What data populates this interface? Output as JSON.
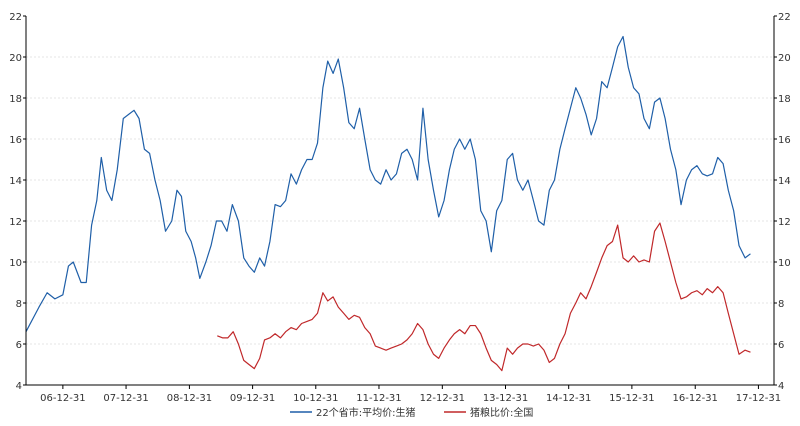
{
  "chart_data": {
    "type": "line",
    "title": "",
    "xlabel": "",
    "ylabel": "",
    "ylim": [
      4,
      22
    ],
    "yticks": [
      4,
      6,
      8,
      10,
      12,
      14,
      16,
      18,
      20,
      22
    ],
    "y2lim": [
      4,
      22
    ],
    "y2ticks": [
      4,
      6,
      8,
      10,
      12,
      14,
      16,
      18,
      20,
      22
    ],
    "xlim": [
      "2006-06-01",
      "2018-03-31"
    ],
    "xticks": [
      "06-12-31",
      "07-12-31",
      "08-12-31",
      "09-12-31",
      "10-12-31",
      "11-12-31",
      "12-12-31",
      "13-12-31",
      "14-12-31",
      "15-12-31",
      "16-12-31",
      "17-12-31"
    ],
    "grid": true,
    "legend_position": "bottom",
    "series": [
      {
        "name": "22个省市:平均价:生猪",
        "color": "#1f5fa8",
        "axis": "left",
        "points": [
          [
            "2006-06-01",
            6.6
          ],
          [
            "2006-08-15",
            7.8
          ],
          [
            "2006-10-01",
            8.5
          ],
          [
            "2006-11-15",
            8.2
          ],
          [
            "2006-12-31",
            8.4
          ],
          [
            "2007-02-01",
            9.8
          ],
          [
            "2007-03-01",
            10.0
          ],
          [
            "2007-04-15",
            9.0
          ],
          [
            "2007-05-15",
            9.0
          ],
          [
            "2007-06-15",
            11.8
          ],
          [
            "2007-07-15",
            13.0
          ],
          [
            "2007-08-10",
            15.1
          ],
          [
            "2007-09-10",
            13.5
          ],
          [
            "2007-10-10",
            13.0
          ],
          [
            "2007-11-10",
            14.5
          ],
          [
            "2007-12-15",
            17.0
          ],
          [
            "2008-01-15",
            17.2
          ],
          [
            "2008-02-15",
            17.4
          ],
          [
            "2008-03-15",
            17.0
          ],
          [
            "2008-04-15",
            15.5
          ],
          [
            "2008-05-15",
            15.3
          ],
          [
            "2008-06-15",
            14.0
          ],
          [
            "2008-07-15",
            13.0
          ],
          [
            "2008-08-15",
            11.5
          ],
          [
            "2008-09-20",
            12.0
          ],
          [
            "2008-10-20",
            13.5
          ],
          [
            "2008-11-15",
            13.2
          ],
          [
            "2008-12-10",
            11.5
          ],
          [
            "2009-01-10",
            11.0
          ],
          [
            "2009-02-05",
            10.2
          ],
          [
            "2009-03-01",
            9.2
          ],
          [
            "2009-04-05",
            10.0
          ],
          [
            "2009-05-05",
            10.8
          ],
          [
            "2009-06-05",
            12.0
          ],
          [
            "2009-07-05",
            12.0
          ],
          [
            "2009-08-05",
            11.5
          ],
          [
            "2009-09-05",
            12.8
          ],
          [
            "2009-10-10",
            12.0
          ],
          [
            "2009-11-10",
            10.2
          ],
          [
            "2009-12-10",
            9.8
          ],
          [
            "2010-01-10",
            9.5
          ],
          [
            "2010-02-10",
            10.2
          ],
          [
            "2010-03-10",
            9.8
          ],
          [
            "2010-04-10",
            11.0
          ],
          [
            "2010-05-10",
            12.8
          ],
          [
            "2010-06-10",
            12.7
          ],
          [
            "2010-07-10",
            13.0
          ],
          [
            "2010-08-10",
            14.3
          ],
          [
            "2010-09-10",
            13.8
          ],
          [
            "2010-10-10",
            14.5
          ],
          [
            "2010-11-10",
            15.0
          ],
          [
            "2010-12-10",
            15.0
          ],
          [
            "2011-01-10",
            15.8
          ],
          [
            "2011-02-10",
            18.5
          ],
          [
            "2011-03-10",
            19.8
          ],
          [
            "2011-04-10",
            19.2
          ],
          [
            "2011-05-10",
            19.9
          ],
          [
            "2011-06-10",
            18.5
          ],
          [
            "2011-07-10",
            16.8
          ],
          [
            "2011-08-10",
            16.5
          ],
          [
            "2011-09-10",
            17.5
          ],
          [
            "2011-10-10",
            16.0
          ],
          [
            "2011-11-10",
            14.5
          ],
          [
            "2011-12-10",
            14.0
          ],
          [
            "2012-01-10",
            13.8
          ],
          [
            "2012-02-10",
            14.5
          ],
          [
            "2012-03-10",
            14.0
          ],
          [
            "2012-04-10",
            14.3
          ],
          [
            "2012-05-10",
            15.3
          ],
          [
            "2012-06-10",
            15.5
          ],
          [
            "2012-07-10",
            15.0
          ],
          [
            "2012-08-10",
            14.0
          ],
          [
            "2012-09-10",
            17.5
          ],
          [
            "2012-10-10",
            15.0
          ],
          [
            "2012-11-10",
            13.5
          ],
          [
            "2012-12-10",
            12.2
          ],
          [
            "2013-01-10",
            13.0
          ],
          [
            "2013-02-10",
            14.5
          ],
          [
            "2013-03-10",
            15.5
          ],
          [
            "2013-04-10",
            16.0
          ],
          [
            "2013-05-10",
            15.5
          ],
          [
            "2013-06-10",
            16.0
          ],
          [
            "2013-07-10",
            15.0
          ],
          [
            "2013-08-10",
            12.5
          ],
          [
            "2013-09-10",
            12.0
          ],
          [
            "2013-10-10",
            10.5
          ],
          [
            "2013-11-10",
            12.5
          ],
          [
            "2013-12-10",
            13.0
          ],
          [
            "2014-01-10",
            15.0
          ],
          [
            "2014-02-10",
            15.3
          ],
          [
            "2014-03-10",
            14.0
          ],
          [
            "2014-04-10",
            13.5
          ],
          [
            "2014-05-10",
            14.0
          ],
          [
            "2014-06-10",
            13.0
          ],
          [
            "2014-07-10",
            12.0
          ],
          [
            "2014-08-10",
            11.8
          ],
          [
            "2014-09-10",
            13.5
          ],
          [
            "2014-10-10",
            14.0
          ],
          [
            "2014-11-10",
            15.5
          ],
          [
            "2014-12-10",
            16.5
          ],
          [
            "2015-01-10",
            17.5
          ],
          [
            "2015-02-10",
            18.5
          ],
          [
            "2015-03-10",
            18.0
          ],
          [
            "2015-04-10",
            17.2
          ],
          [
            "2015-05-10",
            16.2
          ],
          [
            "2015-06-10",
            17.0
          ],
          [
            "2015-07-10",
            18.8
          ],
          [
            "2015-08-10",
            18.5
          ],
          [
            "2015-09-10",
            19.5
          ],
          [
            "2015-10-10",
            20.5
          ],
          [
            "2015-11-10",
            21.0
          ],
          [
            "2015-12-10",
            19.5
          ],
          [
            "2016-01-10",
            18.5
          ],
          [
            "2016-02-10",
            18.2
          ],
          [
            "2016-03-10",
            17.0
          ],
          [
            "2016-04-10",
            16.5
          ],
          [
            "2016-05-10",
            17.8
          ],
          [
            "2016-06-10",
            18.0
          ],
          [
            "2016-07-10",
            17.0
          ],
          [
            "2016-08-10",
            15.5
          ],
          [
            "2016-09-10",
            14.5
          ],
          [
            "2016-10-10",
            12.8
          ],
          [
            "2016-11-10",
            14.0
          ],
          [
            "2016-12-10",
            14.5
          ],
          [
            "2017-01-10",
            14.7
          ],
          [
            "2017-02-10",
            14.3
          ],
          [
            "2017-03-10",
            14.2
          ],
          [
            "2017-04-10",
            14.3
          ],
          [
            "2017-05-10",
            15.1
          ],
          [
            "2017-06-10",
            14.8
          ],
          [
            "2017-07-10",
            13.5
          ],
          [
            "2017-08-10",
            12.5
          ],
          [
            "2017-09-10",
            10.8
          ],
          [
            "2017-10-15",
            10.2
          ],
          [
            "2017-11-15",
            10.4
          ]
        ]
      },
      {
        "name": "猪粮比价:全国",
        "color": "#c0282a",
        "axis": "right",
        "points": [
          [
            "2009-06-10",
            6.4
          ],
          [
            "2009-07-10",
            6.3
          ],
          [
            "2009-08-10",
            6.3
          ],
          [
            "2009-09-10",
            6.6
          ],
          [
            "2009-10-10",
            6.0
          ],
          [
            "2009-11-10",
            5.2
          ],
          [
            "2009-12-10",
            5.0
          ],
          [
            "2010-01-10",
            4.8
          ],
          [
            "2010-02-10",
            5.3
          ],
          [
            "2010-03-10",
            6.2
          ],
          [
            "2010-04-10",
            6.3
          ],
          [
            "2010-05-10",
            6.5
          ],
          [
            "2010-06-10",
            6.3
          ],
          [
            "2010-07-10",
            6.6
          ],
          [
            "2010-08-10",
            6.8
          ],
          [
            "2010-09-10",
            6.7
          ],
          [
            "2010-10-10",
            7.0
          ],
          [
            "2010-11-10",
            7.1
          ],
          [
            "2010-12-10",
            7.2
          ],
          [
            "2011-01-10",
            7.5
          ],
          [
            "2011-02-10",
            8.5
          ],
          [
            "2011-03-10",
            8.1
          ],
          [
            "2011-04-10",
            8.3
          ],
          [
            "2011-05-10",
            7.8
          ],
          [
            "2011-06-10",
            7.5
          ],
          [
            "2011-07-10",
            7.2
          ],
          [
            "2011-08-10",
            7.4
          ],
          [
            "2011-09-10",
            7.3
          ],
          [
            "2011-10-10",
            6.8
          ],
          [
            "2011-11-10",
            6.5
          ],
          [
            "2011-12-10",
            5.9
          ],
          [
            "2012-01-10",
            5.8
          ],
          [
            "2012-02-10",
            5.7
          ],
          [
            "2012-03-10",
            5.8
          ],
          [
            "2012-04-10",
            5.9
          ],
          [
            "2012-05-10",
            6.0
          ],
          [
            "2012-06-10",
            6.2
          ],
          [
            "2012-07-10",
            6.5
          ],
          [
            "2012-08-10",
            7.0
          ],
          [
            "2012-09-10",
            6.7
          ],
          [
            "2012-10-10",
            6.0
          ],
          [
            "2012-11-10",
            5.5
          ],
          [
            "2012-12-10",
            5.3
          ],
          [
            "2013-01-10",
            5.8
          ],
          [
            "2013-02-10",
            6.2
          ],
          [
            "2013-03-10",
            6.5
          ],
          [
            "2013-04-10",
            6.7
          ],
          [
            "2013-05-10",
            6.5
          ],
          [
            "2013-06-10",
            6.9
          ],
          [
            "2013-07-10",
            6.9
          ],
          [
            "2013-08-10",
            6.5
          ],
          [
            "2013-09-10",
            5.8
          ],
          [
            "2013-10-10",
            5.2
          ],
          [
            "2013-11-10",
            5.0
          ],
          [
            "2013-12-10",
            4.7
          ],
          [
            "2014-01-10",
            5.8
          ],
          [
            "2014-02-10",
            5.5
          ],
          [
            "2014-03-10",
            5.8
          ],
          [
            "2014-04-10",
            6.0
          ],
          [
            "2014-05-10",
            6.0
          ],
          [
            "2014-06-10",
            5.9
          ],
          [
            "2014-07-10",
            6.0
          ],
          [
            "2014-08-10",
            5.7
          ],
          [
            "2014-09-10",
            5.1
          ],
          [
            "2014-10-10",
            5.3
          ],
          [
            "2014-11-10",
            6.0
          ],
          [
            "2014-12-10",
            6.5
          ],
          [
            "2015-01-10",
            7.5
          ],
          [
            "2015-02-10",
            8.0
          ],
          [
            "2015-03-10",
            8.5
          ],
          [
            "2015-04-10",
            8.2
          ],
          [
            "2015-05-10",
            8.8
          ],
          [
            "2015-06-10",
            9.5
          ],
          [
            "2015-07-10",
            10.2
          ],
          [
            "2015-08-10",
            10.8
          ],
          [
            "2015-09-10",
            11.0
          ],
          [
            "2015-10-10",
            11.8
          ],
          [
            "2015-11-10",
            10.2
          ],
          [
            "2015-12-10",
            10.0
          ],
          [
            "2016-01-10",
            10.3
          ],
          [
            "2016-02-10",
            10.0
          ],
          [
            "2016-03-10",
            10.1
          ],
          [
            "2016-04-10",
            10.0
          ],
          [
            "2016-05-10",
            11.5
          ],
          [
            "2016-06-10",
            11.9
          ],
          [
            "2016-07-10",
            11.0
          ],
          [
            "2016-08-10",
            10.0
          ],
          [
            "2016-09-10",
            9.0
          ],
          [
            "2016-10-10",
            8.2
          ],
          [
            "2016-11-10",
            8.3
          ],
          [
            "2016-12-10",
            8.5
          ],
          [
            "2017-01-10",
            8.6
          ],
          [
            "2017-02-10",
            8.4
          ],
          [
            "2017-03-10",
            8.7
          ],
          [
            "2017-04-10",
            8.5
          ],
          [
            "2017-05-10",
            8.8
          ],
          [
            "2017-06-10",
            8.5
          ],
          [
            "2017-07-10",
            7.5
          ],
          [
            "2017-08-10",
            6.5
          ],
          [
            "2017-09-10",
            5.5
          ],
          [
            "2017-10-15",
            5.7
          ],
          [
            "2017-11-15",
            5.6
          ]
        ]
      }
    ]
  }
}
